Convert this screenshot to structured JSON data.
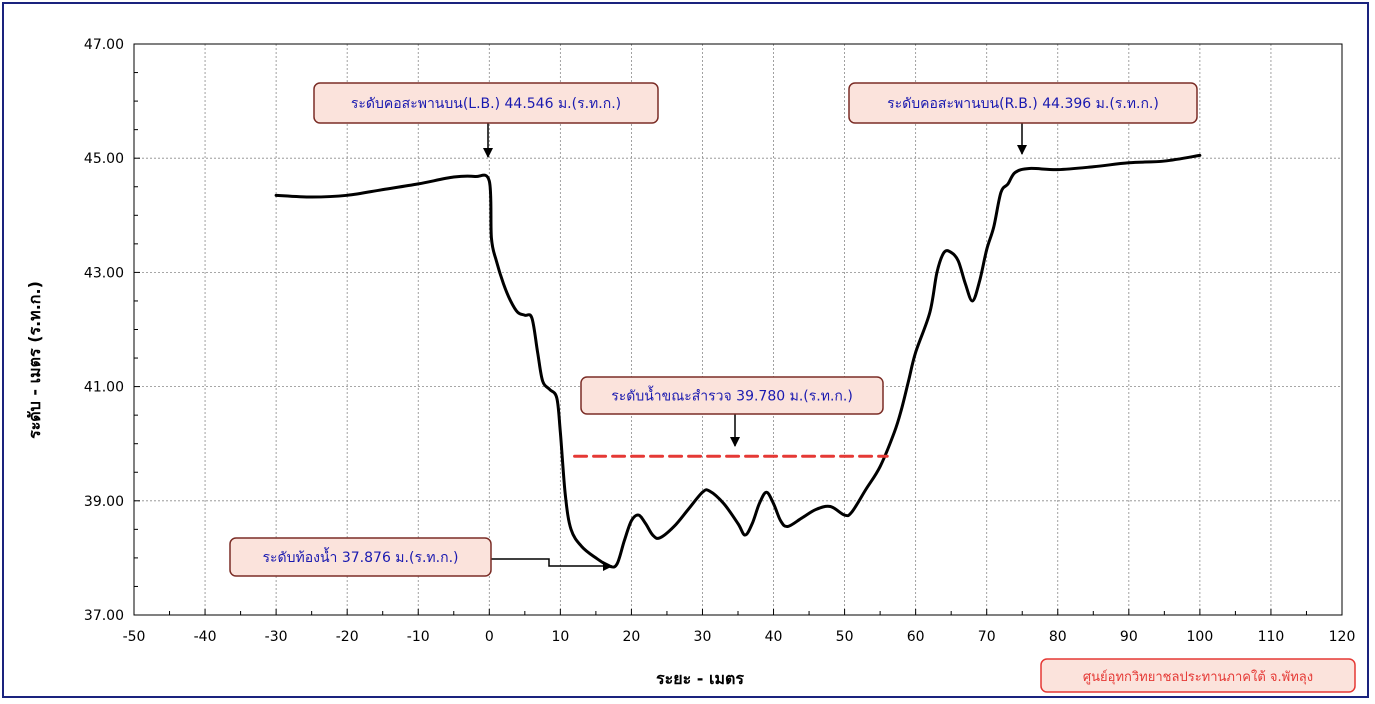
{
  "chart_data": {
    "type": "line",
    "xlabel": "ระยะ - เมตร",
    "ylabel": "ระดับ - เมตร (ร.ท.ก.)",
    "xlim": [
      -50,
      120
    ],
    "ylim": [
      37,
      47
    ],
    "x_ticks": [
      "-50",
      "-40",
      "-30",
      "-20",
      "-10",
      "0",
      "10",
      "20",
      "30",
      "40",
      "50",
      "60",
      "70",
      "80",
      "90",
      "100",
      "110",
      "120"
    ],
    "y_ticks": [
      "37.00",
      "39.00",
      "41.00",
      "43.00",
      "45.00",
      "47.00"
    ],
    "grid": true,
    "series": [
      {
        "color": "#000000",
        "points": [
          [
            -30,
            44.35
          ],
          [
            -25,
            44.32
          ],
          [
            -20,
            44.35
          ],
          [
            -15,
            44.45
          ],
          [
            -10,
            44.55
          ],
          [
            -5,
            44.67
          ],
          [
            -2,
            44.68
          ],
          [
            0,
            44.6
          ],
          [
            0.3,
            43.6
          ],
          [
            1,
            43.2
          ],
          [
            2,
            42.8
          ],
          [
            3,
            42.5
          ],
          [
            4,
            42.3
          ],
          [
            5,
            42.25
          ],
          [
            6,
            42.2
          ],
          [
            6.8,
            41.6
          ],
          [
            7.5,
            41.1
          ],
          [
            8.5,
            40.95
          ],
          [
            9.5,
            40.8
          ],
          [
            10,
            40.2
          ],
          [
            10.7,
            39.1
          ],
          [
            11.5,
            38.5
          ],
          [
            13,
            38.2
          ],
          [
            15,
            38.0
          ],
          [
            17,
            37.85
          ],
          [
            18,
            37.9
          ],
          [
            19,
            38.3
          ],
          [
            20,
            38.65
          ],
          [
            21,
            38.75
          ],
          [
            22,
            38.6
          ],
          [
            23,
            38.4
          ],
          [
            24,
            38.35
          ],
          [
            26,
            38.55
          ],
          [
            28,
            38.85
          ],
          [
            30,
            39.15
          ],
          [
            31,
            39.17
          ],
          [
            33,
            38.95
          ],
          [
            35,
            38.6
          ],
          [
            36,
            38.4
          ],
          [
            37,
            38.6
          ],
          [
            38,
            38.95
          ],
          [
            39,
            39.15
          ],
          [
            40,
            38.95
          ],
          [
            41,
            38.65
          ],
          [
            42,
            38.55
          ],
          [
            44,
            38.7
          ],
          [
            46,
            38.85
          ],
          [
            48,
            38.9
          ],
          [
            50,
            38.75
          ],
          [
            51,
            38.8
          ],
          [
            53,
            39.2
          ],
          [
            55,
            39.6
          ],
          [
            57,
            40.2
          ],
          [
            58,
            40.6
          ],
          [
            59,
            41.1
          ],
          [
            60,
            41.6
          ],
          [
            62,
            42.3
          ],
          [
            63,
            43.0
          ],
          [
            64,
            43.35
          ],
          [
            65,
            43.35
          ],
          [
            66,
            43.2
          ],
          [
            67,
            42.8
          ],
          [
            68,
            42.5
          ],
          [
            69,
            42.85
          ],
          [
            70,
            43.4
          ],
          [
            71,
            43.8
          ],
          [
            72,
            44.4
          ],
          [
            73,
            44.55
          ],
          [
            74,
            44.75
          ],
          [
            76,
            44.82
          ],
          [
            80,
            44.8
          ],
          [
            85,
            44.85
          ],
          [
            90,
            44.92
          ],
          [
            95,
            44.95
          ],
          [
            100,
            45.05
          ]
        ]
      },
      {
        "color": "#e53935",
        "dashed": true,
        "points": [
          [
            12,
            39.78
          ],
          [
            56,
            39.78
          ]
        ]
      }
    ],
    "annotations": [
      {
        "text": "ระดับคอสะพานบน(L.B.) 44.546  ม.(ร.ท.ก.)",
        "anchor": [
          0,
          44.546
        ]
      },
      {
        "text": "ระดับคอสะพานบน(R.B.) 44.396 ม.(ร.ท.ก.)",
        "anchor": [
          75,
          44.396
        ]
      },
      {
        "text": "ระดับน้ำขณะสำรวจ 39.780  ม.(ร.ท.ก.)",
        "anchor": [
          35,
          39.78
        ]
      },
      {
        "text": "ระดับท้องน้ำ 37.876  ม.(ร.ท.ก.)",
        "anchor": [
          18,
          37.876
        ]
      }
    ]
  },
  "credit": "ศูนย์อุทกวิทยาชลประทานภาคใต้ จ.พัทลุง",
  "colors": {
    "frame": "#1a237e",
    "annotation_fill": "#fbe3dc",
    "annotation_border": "#7b2d26",
    "annotation_text": "#1a1ab0",
    "credit_fill": "#fbe3dc",
    "credit_border": "#e53935",
    "credit_text": "#e53935"
  }
}
